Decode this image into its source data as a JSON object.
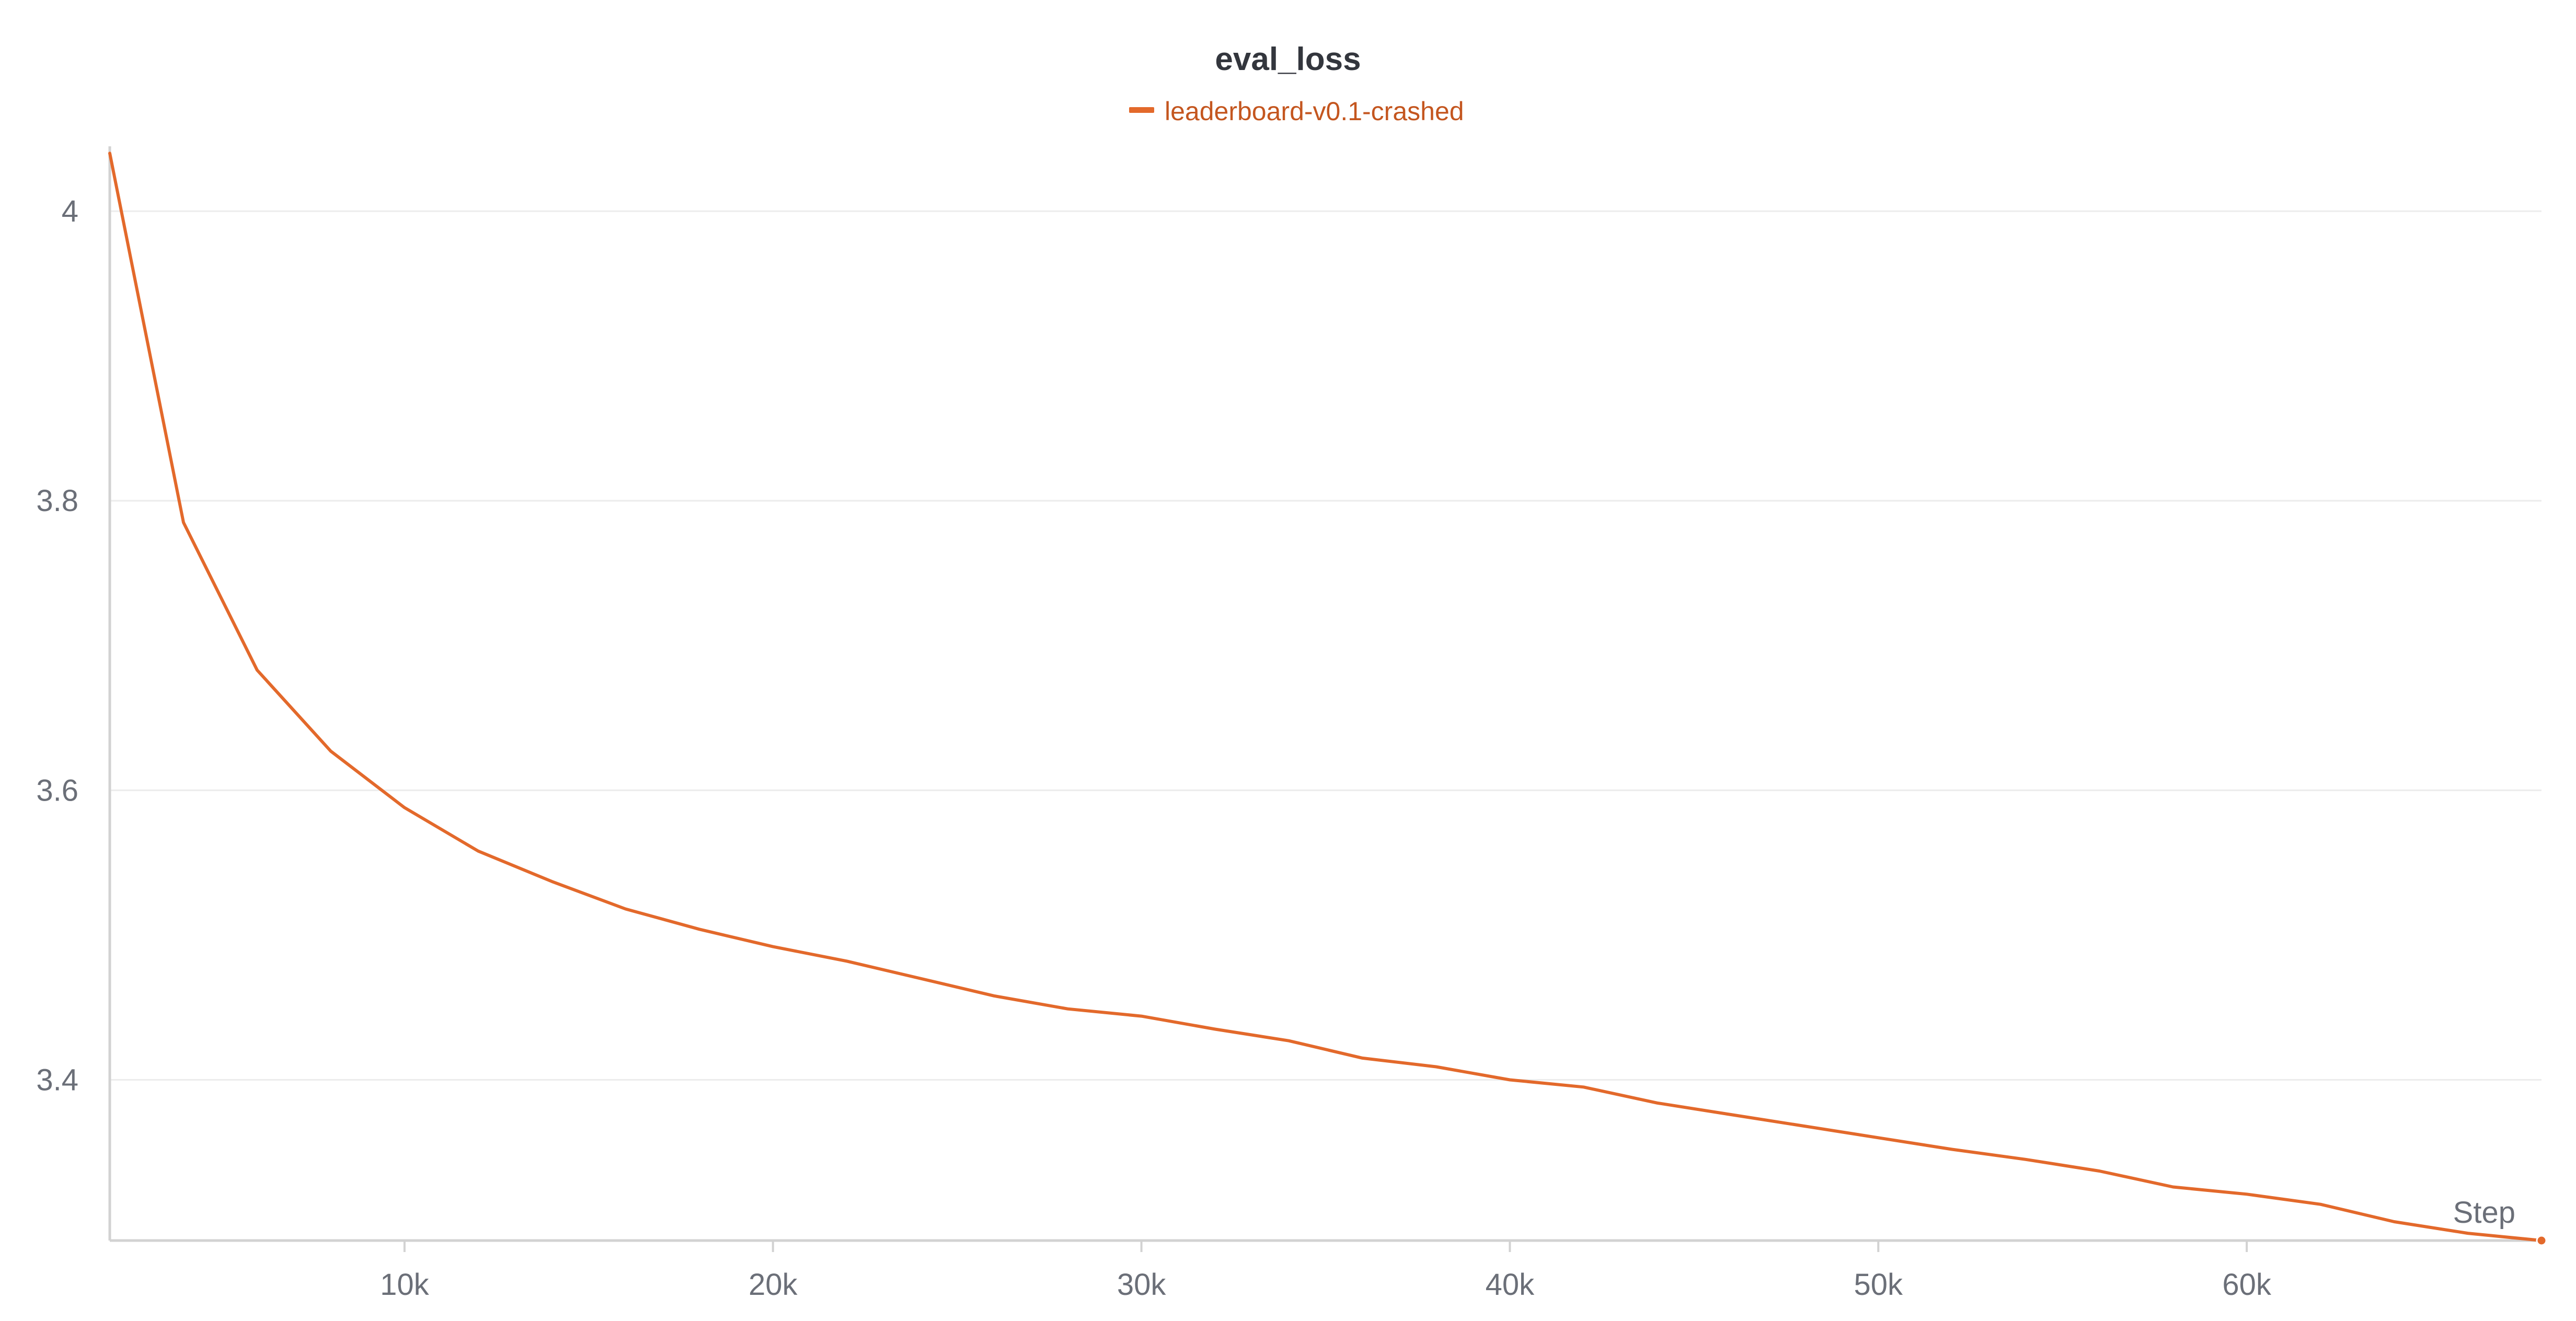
{
  "chart_data": {
    "type": "line",
    "title": "eval_loss",
    "xlabel": "Step",
    "ylabel": "",
    "xlim": [
      2000,
      68000
    ],
    "ylim": [
      3.289,
      4.043
    ],
    "x_ticks": [
      10000,
      20000,
      30000,
      40000,
      50000,
      60000
    ],
    "x_tick_labels": [
      "10k",
      "20k",
      "30k",
      "40k",
      "50k",
      "60k"
    ],
    "y_ticks": [
      3.4,
      3.6,
      3.8,
      4.0
    ],
    "y_tick_labels": [
      "3.4",
      "3.6",
      "3.8",
      "4"
    ],
    "grid": true,
    "legend_position": "top-center",
    "series": [
      {
        "name": "leaderboard-v0.1-crashed",
        "color": "#e3692b",
        "x": [
          2000,
          4000,
          6000,
          8000,
          10000,
          12000,
          14000,
          16000,
          18000,
          20000,
          22000,
          24000,
          26000,
          28000,
          30000,
          32000,
          34000,
          36000,
          38000,
          40000,
          42000,
          44000,
          46000,
          48000,
          50000,
          52000,
          54000,
          56000,
          58000,
          60000,
          62000,
          64000,
          66000,
          68000
        ],
        "values": [
          4.04,
          3.785,
          3.683,
          3.627,
          3.588,
          3.558,
          3.537,
          3.518,
          3.504,
          3.492,
          3.482,
          3.47,
          3.458,
          3.449,
          3.444,
          3.435,
          3.427,
          3.415,
          3.409,
          3.4,
          3.395,
          3.384,
          3.376,
          3.368,
          3.36,
          3.352,
          3.345,
          3.337,
          3.326,
          3.321,
          3.314,
          3.302,
          3.294,
          3.289
        ]
      }
    ]
  }
}
